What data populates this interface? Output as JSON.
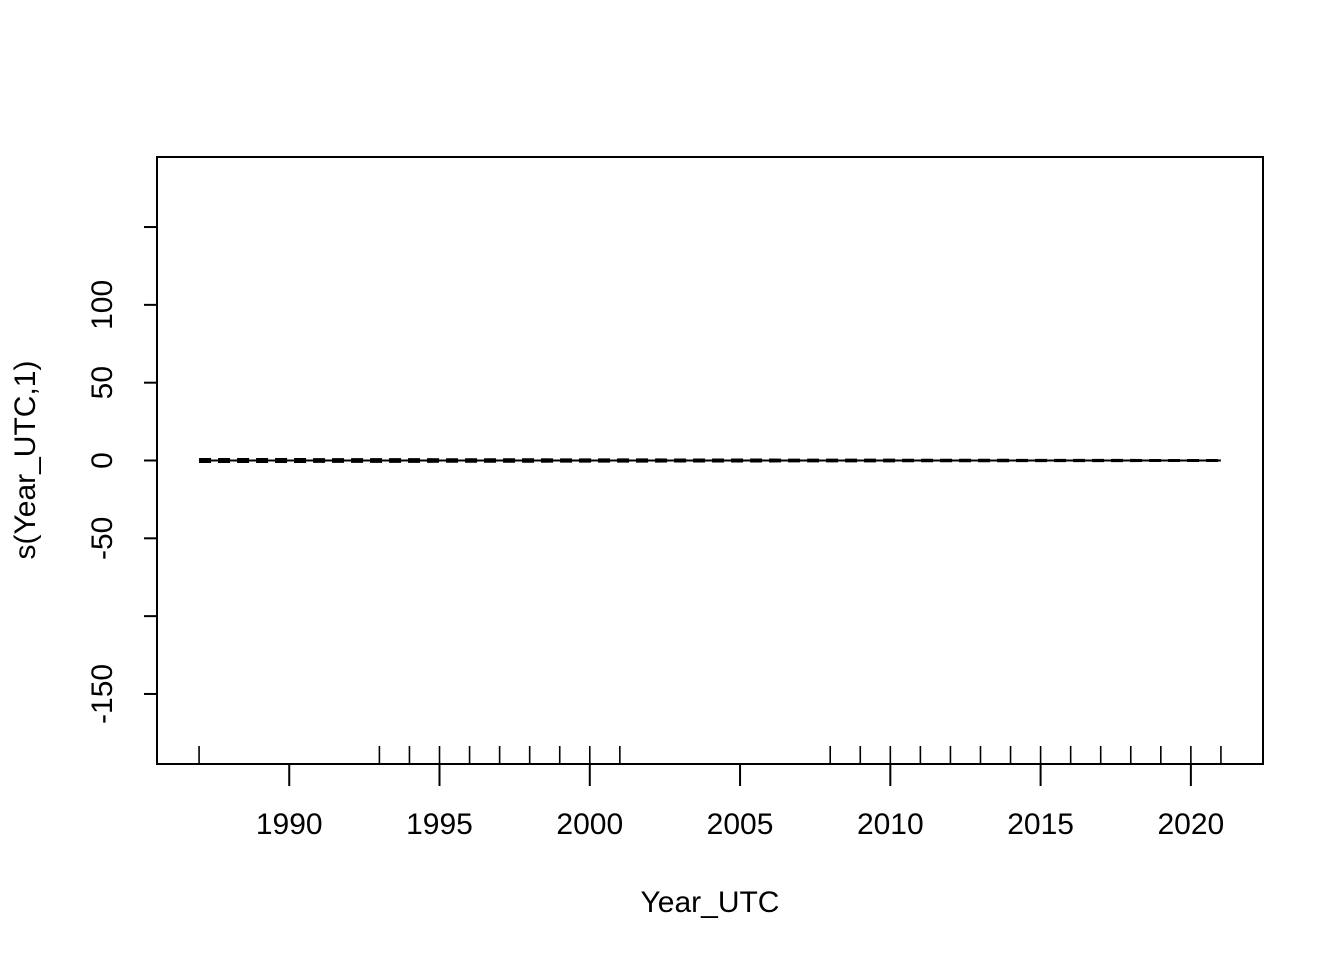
{
  "chart_data": {
    "type": "line",
    "title": "",
    "xlabel": "Year_UTC",
    "ylabel": "s(Year_UTC,1)",
    "xlim": [
      1985.6,
      2022.4
    ],
    "ylim": [
      -195,
      195
    ],
    "x_ticks": [
      1990,
      1995,
      2000,
      2005,
      2010,
      2015,
      2020
    ],
    "x_tick_labels": [
      "1990",
      "1995",
      "2000",
      "2005",
      "2010",
      "2015",
      "2020"
    ],
    "y_ticks": [
      -150,
      -100,
      -50,
      0,
      50,
      100,
      150
    ],
    "y_tick_labels": [
      "-150",
      "",
      "-50",
      "0",
      "50",
      "100",
      ""
    ],
    "series": [
      {
        "style": "solid",
        "x": [
          1987,
          2021
        ],
        "y": [
          0.0,
          0.0
        ]
      },
      {
        "style": "dashed",
        "x": [
          1987,
          2021
        ],
        "y": [
          1.0,
          0.3
        ]
      },
      {
        "style": "dashed",
        "x": [
          1987,
          2021
        ],
        "y": [
          -1.0,
          -0.3
        ]
      }
    ],
    "rug": [
      1987,
      1993,
      1994,
      1995,
      1996,
      1997,
      1998,
      1999,
      2000,
      2001,
      2008,
      2009,
      2010,
      2011,
      2012,
      2013,
      2014,
      2015,
      2016,
      2017,
      2018,
      2019,
      2020,
      2021
    ],
    "grid": false,
    "legend": "none"
  }
}
